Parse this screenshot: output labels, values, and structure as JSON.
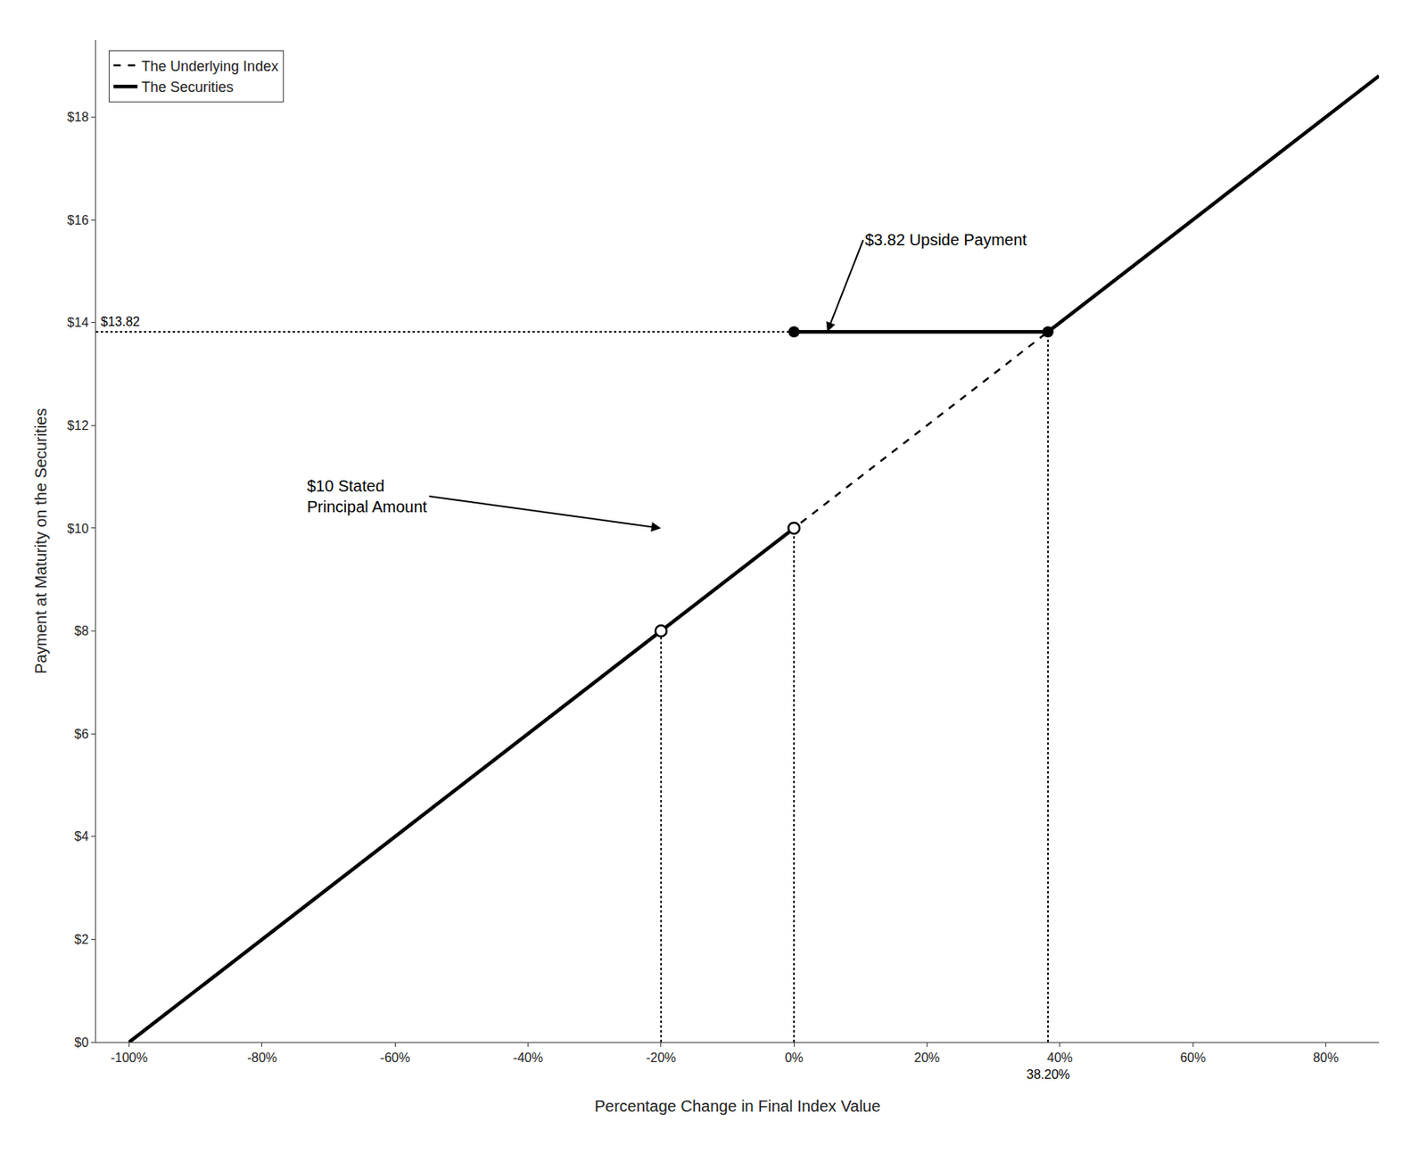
{
  "chart_data": {
    "type": "line",
    "xlabel": "Percentage Change in Final Index Value",
    "ylabel": "Payment at Maturity on the Securities",
    "xlim": [
      -1.05,
      0.88
    ],
    "ylim": [
      0,
      19.5
    ],
    "xticks": [
      {
        "value": -1.0,
        "label": "-100%"
      },
      {
        "value": -0.8,
        "label": "-80%"
      },
      {
        "value": -0.6,
        "label": "-60%"
      },
      {
        "value": -0.4,
        "label": "-40%"
      },
      {
        "value": -0.2,
        "label": "-20%"
      },
      {
        "value": 0.0,
        "label": "0%"
      },
      {
        "value": 0.2,
        "label": "20%"
      },
      {
        "value": 0.4,
        "label": "40%"
      },
      {
        "value": 0.6,
        "label": "60%"
      },
      {
        "value": 0.8,
        "label": "80%"
      }
    ],
    "yticks": [
      {
        "value": 0,
        "label": "$0"
      },
      {
        "value": 2,
        "label": "$2"
      },
      {
        "value": 4,
        "label": "$4"
      },
      {
        "value": 6,
        "label": "$6"
      },
      {
        "value": 8,
        "label": "$8"
      },
      {
        "value": 10,
        "label": "$10"
      },
      {
        "value": 12,
        "label": "$12"
      },
      {
        "value": 14,
        "label": "$14"
      },
      {
        "value": 16,
        "label": "$16"
      },
      {
        "value": 18,
        "label": "$18"
      }
    ],
    "grid": false,
    "legend": "upper left",
    "series": [
      {
        "name": "The Underlying Index",
        "type": "line",
        "line_style": "dashed",
        "color": "#000000",
        "x": [
          -1.0,
          0.88
        ],
        "values": [
          0,
          18.8
        ]
      },
      {
        "name": "The Securities",
        "type": "line",
        "line_style": "solid",
        "color": "#000000",
        "x": [
          -1.0,
          0.0,
          0.0,
          0.0,
          0.382,
          0.88
        ],
        "values": [
          0,
          10,
          null,
          13.82,
          13.82,
          18.8
        ]
      },
      {
        "type": "line",
        "line_style": "dotted",
        "color": "#000000",
        "x": [
          -1.05,
          0.0,
          null,
          -0.2,
          -0.2,
          null,
          0.0,
          0.0,
          null,
          0.382,
          0.382
        ],
        "values": [
          13.82,
          13.82,
          null,
          0,
          8,
          null,
          0,
          10,
          null,
          0,
          13.82
        ]
      },
      {
        "type": "scatter",
        "marker": "open circle",
        "color": "#000000",
        "x": [
          -0.2,
          0.0
        ],
        "values": [
          8,
          10
        ]
      },
      {
        "type": "scatter",
        "marker": "circle",
        "color": "#000000",
        "x": [
          0.0,
          0.382
        ],
        "values": [
          13.82,
          13.82
        ]
      }
    ],
    "annotations": [
      {
        "text": "38.20%",
        "x": 0.382,
        "y": 0
      },
      {
        "text": "$13.82",
        "x": -1.05,
        "y": 13.82
      },
      {
        "text": "$3.82 Upside Payment",
        "x": 0.05,
        "y": 13.82,
        "arrow": true
      },
      {
        "text": "$10 Stated\nPrincipal Amount",
        "x": -0.2,
        "y": 10,
        "arrow": true
      }
    ]
  }
}
